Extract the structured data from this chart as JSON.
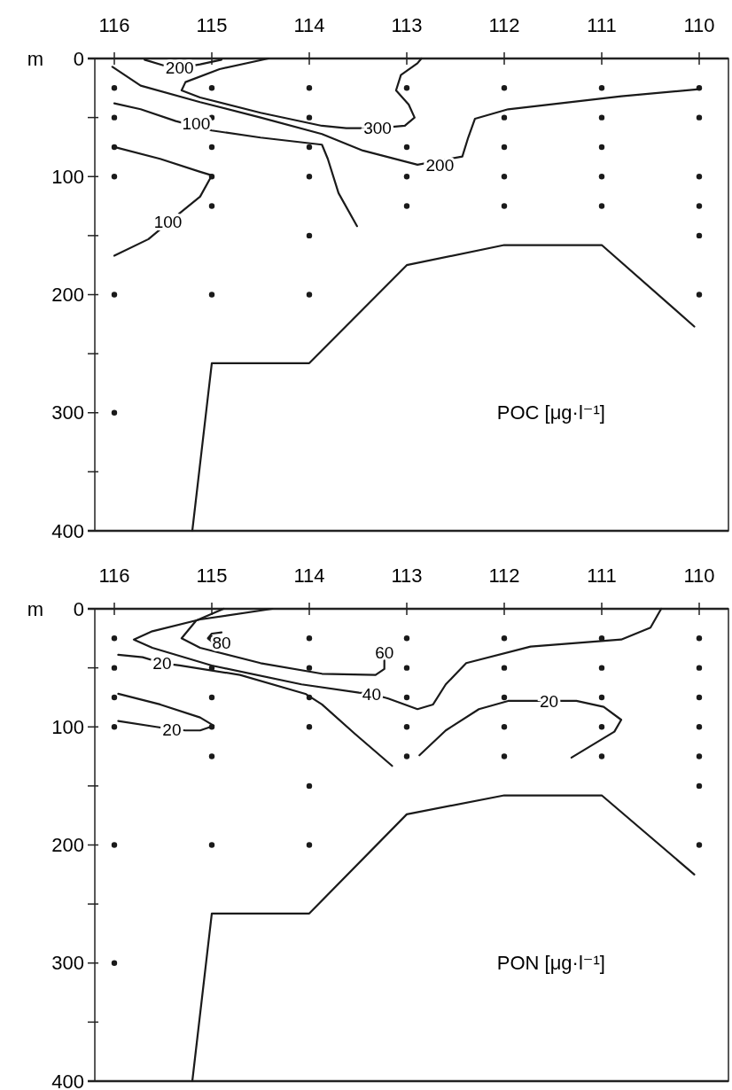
{
  "chart_data": [
    {
      "type": "line",
      "title": "POC [μg·l⁻¹]",
      "ylabel": "m",
      "xlim": [
        116.2,
        109.7
      ],
      "xticks": [
        116,
        115,
        114,
        113,
        112,
        111,
        110
      ],
      "ylim": [
        400,
        0
      ],
      "yticks": [
        0,
        {
          "value": 50,
          "label": null
        },
        100,
        {
          "value": 150,
          "label": null
        },
        200,
        {
          "value": 250,
          "label": null
        },
        300,
        {
          "value": 350,
          "label": null
        },
        400
      ],
      "grid": false,
      "line_style": "solid",
      "marker": "none",
      "series": [
        {
          "color": "#1a1a1a",
          "x": [
            116.02,
            115.73,
            115.12,
            114.5,
            113.87,
            113.45,
            112.89,
            112.43,
            112.37,
            112.3,
            111.96,
            110.8,
            110.0
          ],
          "values": [
            7,
            23,
            37,
            50,
            64,
            78,
            90,
            83,
            67,
            51,
            43,
            32,
            26
          ]
        },
        {
          "color": "#1a1a1a",
          "x": [
            116.0,
            115.73,
            115.37,
            115.0,
            114.5,
            113.87,
            113.81,
            113.7,
            113.51
          ],
          "values": [
            38,
            43,
            53,
            61,
            67,
            73,
            85,
            114,
            142
          ]
        },
        {
          "color": "#1a1a1a",
          "x": [
            116.0,
            115.53,
            115.12,
            115.0,
            115.12,
            115.33,
            115.65,
            116.0
          ],
          "values": [
            75,
            85,
            96,
            99,
            117,
            131,
            153,
            167
          ]
        },
        {
          "color": "#1a1a1a",
          "x": [
            115.69,
            115.49,
            115.33,
            115.12,
            114.9
          ],
          "values": [
            1,
            6,
            8,
            5,
            1
          ]
        },
        {
          "color": "#1a1a1a",
          "x": [
            114.42,
            114.92,
            115.27,
            115.31,
            115.12,
            114.5,
            113.87,
            113.62,
            113.3,
            113.02,
            112.92,
            112.98,
            113.11,
            113.06,
            112.89,
            112.85
          ],
          "values": [
            0,
            9,
            20,
            27,
            33,
            46,
            57,
            59,
            59,
            57,
            50,
            39,
            27,
            14,
            4,
            0
          ]
        },
        {
          "color": "#1a1a1a",
          "x": [
            115.2,
            115.0,
            114.0,
            113.0,
            112.0,
            111.0,
            110.05
          ],
          "values": [
            400,
            258,
            258,
            175,
            158,
            158,
            227
          ]
        },
        {
          "type": "scatter",
          "marker": "circle",
          "color": "#1a1a1a",
          "x": [
            116,
            116,
            116,
            116,
            116,
            116,
            115,
            115,
            115,
            115,
            115,
            115,
            114,
            114,
            114,
            114,
            114,
            114,
            113,
            113,
            113,
            113,
            112,
            112,
            112,
            112,
            112,
            111,
            111,
            111,
            111,
            111,
            110,
            110,
            110,
            110,
            110,
            110
          ],
          "values": [
            25,
            50,
            75,
            100,
            200,
            300,
            25,
            50,
            75,
            100,
            125,
            200,
            25,
            50,
            75,
            100,
            150,
            200,
            25,
            75,
            100,
            125,
            25,
            50,
            75,
            100,
            125,
            25,
            50,
            75,
            100,
            125,
            25,
            50,
            100,
            125,
            150,
            200
          ]
        }
      ],
      "annotations": [
        {
          "text": "200",
          "x": 112.66,
          "y": 90
        },
        {
          "text": "100",
          "x": 115.16,
          "y": 55
        },
        {
          "text": "100",
          "x": 115.45,
          "y": 138
        },
        {
          "text": "200",
          "x": 115.33,
          "y": 8
        },
        {
          "text": "300",
          "x": 113.3,
          "y": 59
        }
      ]
    },
    {
      "type": "line",
      "title": "PON [μg·l⁻¹]",
      "ylabel": "m",
      "xlim": [
        116.2,
        109.7
      ],
      "xticks": [
        116,
        115,
        114,
        113,
        112,
        111,
        110
      ],
      "ylim": [
        400,
        0
      ],
      "yticks": [
        0,
        {
          "value": 50,
          "label": null
        },
        100,
        {
          "value": 150,
          "label": null
        },
        200,
        {
          "value": 250,
          "label": null
        },
        300,
        {
          "value": 350,
          "label": null
        },
        400
      ],
      "grid": false,
      "line_style": "solid",
      "marker": "none",
      "series": [
        {
          "color": "#1a1a1a",
          "x": [
            114.38,
            115.12,
            115.61,
            115.8,
            115.61,
            115.0,
            114.08,
            113.49,
            113.36,
            113.19,
            112.89,
            112.73,
            112.6,
            112.39,
            111.73,
            110.8,
            110.5,
            110.39
          ],
          "values": [
            0,
            9,
            19,
            26,
            33,
            48,
            64,
            71,
            72,
            76,
            85,
            81,
            64,
            46,
            32,
            26,
            16,
            0
          ]
        },
        {
          "color": "#1a1a1a",
          "x": [
            114.88,
            115.16,
            115.31,
            115.12,
            114.5,
            113.87,
            113.32,
            113.23,
            113.23
          ],
          "values": [
            0,
            10,
            25,
            33,
            46,
            55,
            56,
            51,
            37
          ]
        },
        {
          "color": "#1a1a1a",
          "x": [
            114.9,
            115.0,
            115.04,
            114.98,
            114.9
          ],
          "values": [
            20,
            21,
            25,
            29,
            29
          ]
        },
        {
          "color": "#1a1a1a",
          "x": [
            115.96,
            115.71,
            115.51,
            115.33,
            114.71,
            114.04,
            113.87,
            113.53,
            113.15
          ],
          "values": [
            39,
            41,
            46,
            48,
            56,
            72,
            81,
            106,
            133
          ]
        },
        {
          "color": "#1a1a1a",
          "x": [
            115.96,
            115.53,
            115.12,
            114.98,
            115.12,
            115.27,
            115.41,
            115.57,
            115.96
          ],
          "values": [
            72,
            81,
            92,
            99,
            103,
            103,
            102,
            100,
            95
          ]
        },
        {
          "color": "#1a1a1a",
          "x": [
            112.87,
            112.6,
            112.26,
            111.96,
            111.54,
            111.26,
            110.98,
            110.8,
            110.87,
            111.31
          ],
          "values": [
            124,
            103,
            85,
            78,
            78,
            78,
            83,
            94,
            104,
            126
          ]
        },
        {
          "color": "#1a1a1a",
          "x": [
            115.2,
            115.0,
            114.0,
            113.0,
            112.0,
            111.0,
            110.05
          ],
          "values": [
            400,
            258,
            258,
            174,
            158,
            158,
            225
          ]
        },
        {
          "type": "scatter",
          "marker": "circle",
          "color": "#1a1a1a",
          "x": [
            116,
            116,
            116,
            116,
            116,
            116,
            115,
            115,
            115,
            115,
            115,
            115,
            114,
            114,
            114,
            114,
            114,
            114,
            113,
            113,
            113,
            113,
            113,
            112,
            112,
            112,
            112,
            112,
            111,
            111,
            111,
            111,
            111,
            110,
            110,
            110,
            110,
            110,
            110,
            110
          ],
          "values": [
            25,
            50,
            75,
            100,
            200,
            300,
            25,
            50,
            75,
            100,
            125,
            200,
            25,
            50,
            75,
            100,
            150,
            200,
            25,
            50,
            75,
            100,
            125,
            25,
            50,
            75,
            100,
            125,
            25,
            50,
            75,
            100,
            125,
            25,
            50,
            75,
            100,
            125,
            150,
            200
          ]
        }
      ],
      "annotations": [
        {
          "text": "40",
          "x": 113.36,
          "y": 72
        },
        {
          "text": "60",
          "x": 113.23,
          "y": 37
        },
        {
          "text": "80",
          "x": 114.9,
          "y": 29
        },
        {
          "text": "20",
          "x": 115.51,
          "y": 46
        },
        {
          "text": "20",
          "x": 115.41,
          "y": 102
        },
        {
          "text": "20",
          "x": 111.54,
          "y": 78
        }
      ]
    }
  ]
}
